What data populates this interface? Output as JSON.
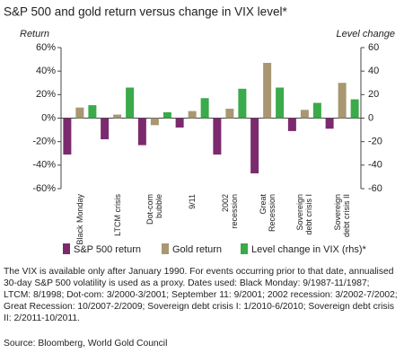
{
  "chart_data": {
    "type": "bar",
    "title": "S&P 500 and gold return versus change in VIX level*",
    "ylabel": "Return",
    "y2label": "Level change",
    "categories": [
      "Black Monday",
      "LTCM crisis",
      "Dot-com bubble",
      "9/11",
      "2002 recession",
      "Great Recession",
      "Sovereign debt crisis I",
      "Sovereign debt crisis II"
    ],
    "series": [
      {
        "name": "S&P 500 return",
        "color": "#7b2a6e",
        "values": [
          -31,
          -18,
          -23,
          -8,
          -31,
          -47,
          -11,
          -9
        ]
      },
      {
        "name": "Gold return",
        "color": "#a89772",
        "values": [
          9,
          3,
          -6,
          6,
          8,
          47,
          7,
          30
        ]
      },
      {
        "name": "Level change in VIX (rhs)*",
        "color": "#3aaa4a",
        "axis": "y2",
        "values": [
          11,
          26,
          5,
          17,
          25,
          26,
          13,
          16
        ]
      }
    ],
    "ylim": [
      -60,
      60
    ],
    "yticks": [
      {
        "value": -60,
        "label": "-60%"
      },
      {
        "value": -40,
        "label": "-40%"
      },
      {
        "value": -20,
        "label": "-20%"
      },
      {
        "value": 0,
        "label": "0%"
      },
      {
        "value": 20,
        "label": "20%"
      },
      {
        "value": 40,
        "label": "40%"
      },
      {
        "value": 60,
        "label": "60%"
      }
    ],
    "y2lim": [
      -60,
      60
    ],
    "y2ticks": [
      -60,
      -40,
      -20,
      0,
      20,
      40,
      60
    ],
    "grid": false,
    "note": "The VIX is available only after January 1990. For events occurring prior to that date, annualised 30-day S&P 500 volatility is used as a proxy. Dates used: Black Monday: 9/1987-11/1987; LTCM: 8/1998; Dot-com: 3/2000-3/2001; September 11: 9/2001; 2002 recession: 3/2002-7/2002; Great Recession: 10/2007-2/2009; Sovereign debt crisis I: 1/2010-6/2010; Sovereign debt crisis II: 2/2011-10/2011.",
    "source": "Source: Bloomberg, World Gold Council"
  }
}
